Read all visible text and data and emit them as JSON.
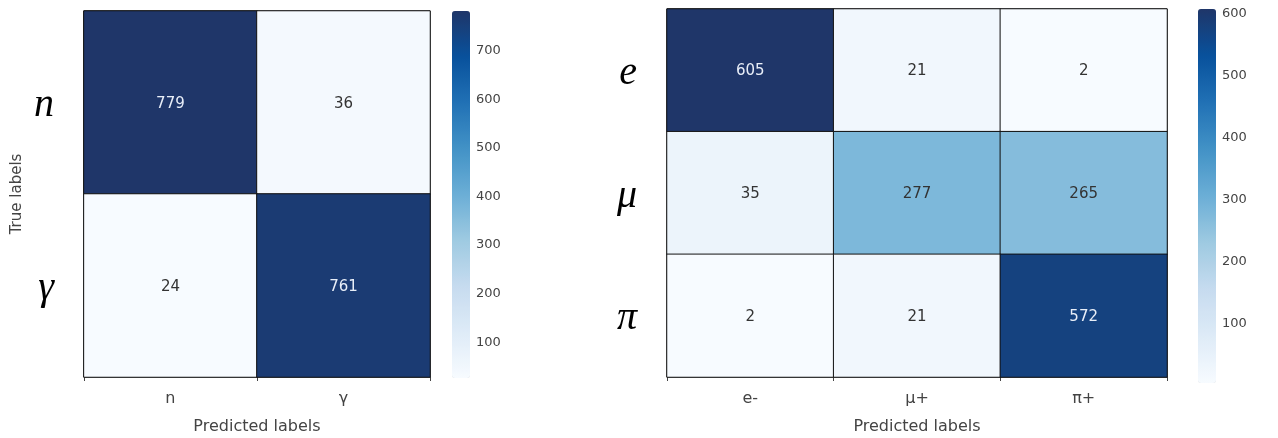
{
  "chart_data": [
    {
      "type": "heatmap",
      "xlabel": "Predicted labels",
      "ylabel": "True labels",
      "categories": [
        "n",
        "γ"
      ],
      "y_categories": [
        "n",
        "γ"
      ],
      "cells": [
        [
          779,
          36
        ],
        [
          24,
          761
        ]
      ],
      "clim": [
        24,
        779
      ],
      "cticks": [
        100,
        200,
        300,
        400,
        500,
        600,
        700
      ],
      "data_labels": true
    },
    {
      "type": "heatmap",
      "xlabel": "Predicted labels",
      "categories": [
        "e-",
        "μ+",
        "π+"
      ],
      "y_categories": [
        "e",
        "μ",
        "π"
      ],
      "cells": [
        [
          605,
          21,
          2
        ],
        [
          35,
          277,
          265
        ],
        [
          2,
          21,
          572
        ]
      ],
      "clim": [
        2,
        605
      ],
      "cticks": [
        100,
        200,
        300,
        400,
        500,
        600
      ],
      "data_labels": true
    }
  ]
}
